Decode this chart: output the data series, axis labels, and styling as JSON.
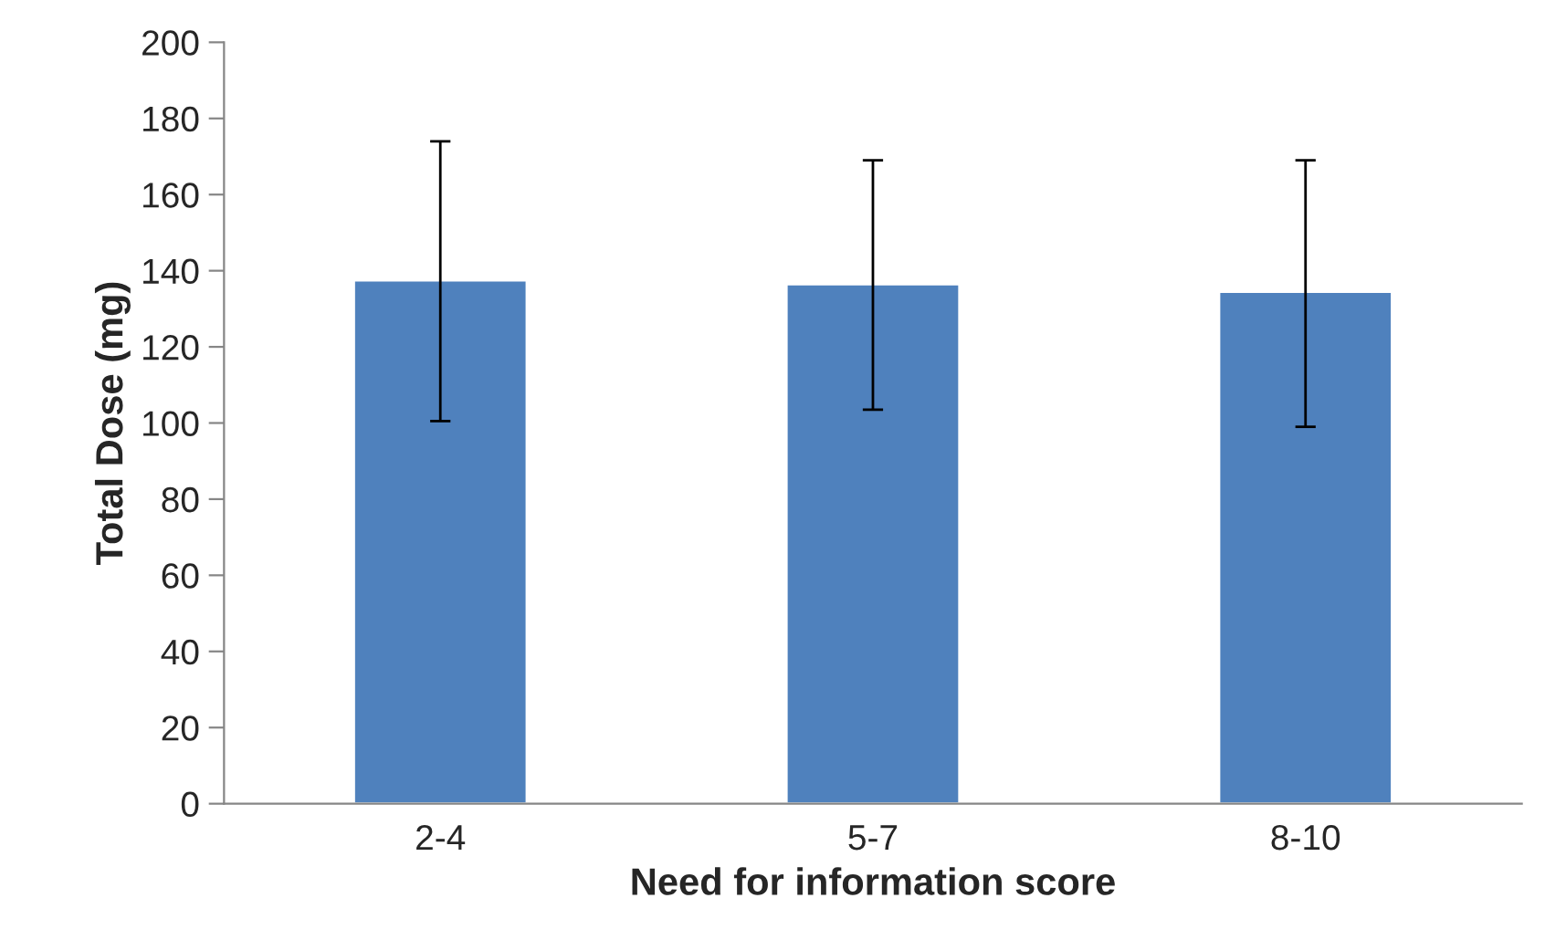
{
  "chart_data": {
    "type": "bar",
    "xlabel": "Need for information score",
    "ylabel": "Total Dose (mg)",
    "categories": [
      "2-4",
      "5-7",
      "8-10"
    ],
    "values": [
      137.5,
      136.5,
      134.5
    ],
    "errors": [
      [
        100.5,
        174
      ],
      [
        103.5,
        169
      ],
      [
        99,
        169
      ]
    ],
    "color": "#4f81bd",
    "ylim": [
      0,
      200
    ],
    "yticks": [
      0,
      20,
      40,
      60,
      80,
      100,
      120,
      140,
      160,
      180,
      200
    ],
    "grid": false,
    "legend": false
  }
}
